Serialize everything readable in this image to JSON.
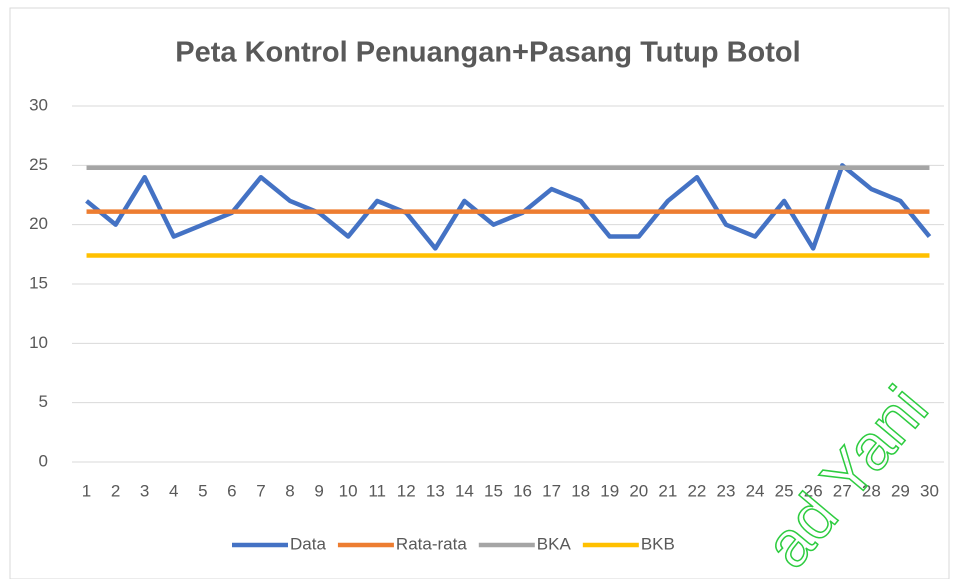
{
  "chart_data": {
    "type": "line",
    "title": "Peta Kontrol Penuangan+Pasang Tutup Botol",
    "categories": [
      1,
      2,
      3,
      4,
      5,
      6,
      7,
      8,
      9,
      10,
      11,
      12,
      13,
      14,
      15,
      16,
      17,
      18,
      19,
      20,
      21,
      22,
      23,
      24,
      25,
      26,
      27,
      28,
      29,
      30
    ],
    "series": [
      {
        "name": "Data",
        "color": "#4472c4",
        "values": [
          22,
          20,
          24,
          19,
          20,
          21,
          24,
          22,
          21,
          19,
          22,
          21,
          18,
          22,
          20,
          21,
          23,
          22,
          19,
          19,
          22,
          24,
          20,
          19,
          22,
          18,
          25,
          23,
          22,
          19
        ]
      },
      {
        "name": "Rata-rata",
        "color": "#ed7d31",
        "values": [
          21.1,
          21.1,
          21.1,
          21.1,
          21.1,
          21.1,
          21.1,
          21.1,
          21.1,
          21.1,
          21.1,
          21.1,
          21.1,
          21.1,
          21.1,
          21.1,
          21.1,
          21.1,
          21.1,
          21.1,
          21.1,
          21.1,
          21.1,
          21.1,
          21.1,
          21.1,
          21.1,
          21.1,
          21.1,
          21.1
        ]
      },
      {
        "name": "BKA",
        "color": "#a5a5a5",
        "values": [
          24.8,
          24.8,
          24.8,
          24.8,
          24.8,
          24.8,
          24.8,
          24.8,
          24.8,
          24.8,
          24.8,
          24.8,
          24.8,
          24.8,
          24.8,
          24.8,
          24.8,
          24.8,
          24.8,
          24.8,
          24.8,
          24.8,
          24.8,
          24.8,
          24.8,
          24.8,
          24.8,
          24.8,
          24.8,
          24.8
        ]
      },
      {
        "name": "BKB",
        "color": "#ffc000",
        "values": [
          17.4,
          17.4,
          17.4,
          17.4,
          17.4,
          17.4,
          17.4,
          17.4,
          17.4,
          17.4,
          17.4,
          17.4,
          17.4,
          17.4,
          17.4,
          17.4,
          17.4,
          17.4,
          17.4,
          17.4,
          17.4,
          17.4,
          17.4,
          17.4,
          17.4,
          17.4,
          17.4,
          17.4,
          17.4,
          17.4
        ]
      }
    ],
    "ylim": [
      0,
      30
    ],
    "yticks": [
      0,
      5,
      10,
      15,
      20,
      25,
      30
    ],
    "grid": true,
    "legend": "bottom",
    "watermark": "ad Yani"
  }
}
